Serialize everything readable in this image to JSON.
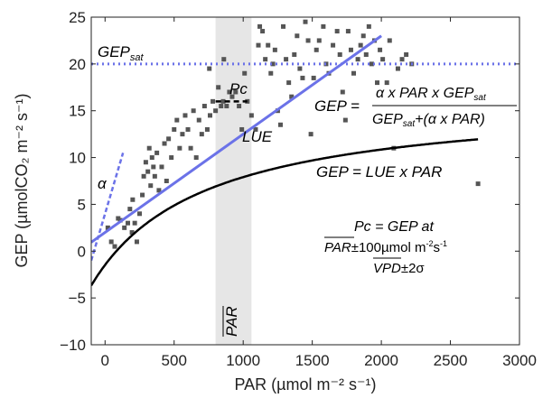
{
  "chart_data": {
    "type": "scatter",
    "xlabel": "PAR (µmol m⁻² s⁻¹)",
    "ylabel": "GEP (µmolCO₂ m⁻² s⁻¹)",
    "xlim": [
      -100,
      3000
    ],
    "ylim": [
      -10,
      25
    ],
    "x_ticks": [
      0,
      500,
      1000,
      1500,
      2000,
      2500,
      3000
    ],
    "y_ticks": [
      -10,
      -5,
      0,
      5,
      10,
      15,
      20,
      25
    ],
    "grid": false,
    "colors": {
      "points": "#555555",
      "fit_curve": "#000000",
      "lue_line": "#6b72e8",
      "band": "#e6e6e6"
    },
    "points": [
      {
        "x": 20,
        "y": 2.5
      },
      {
        "x": 45,
        "y": 1.0
      },
      {
        "x": 70,
        "y": 0.5
      },
      {
        "x": 95,
        "y": 3.5
      },
      {
        "x": 110,
        "y": 3.3
      },
      {
        "x": 140,
        "y": 2.5
      },
      {
        "x": 165,
        "y": 3.0
      },
      {
        "x": 180,
        "y": 4.5
      },
      {
        "x": 195,
        "y": 2.0
      },
      {
        "x": 200,
        "y": 5.5
      },
      {
        "x": 215,
        "y": 3.0
      },
      {
        "x": 230,
        "y": 1.0
      },
      {
        "x": 250,
        "y": 4.0
      },
      {
        "x": 270,
        "y": 6.0
      },
      {
        "x": 280,
        "y": 8.0
      },
      {
        "x": 295,
        "y": 9.5
      },
      {
        "x": 310,
        "y": 8.5
      },
      {
        "x": 320,
        "y": 11.0
      },
      {
        "x": 330,
        "y": 7.0
      },
      {
        "x": 340,
        "y": 10.0
      },
      {
        "x": 350,
        "y": 9.0
      },
      {
        "x": 360,
        "y": 8.0
      },
      {
        "x": 375,
        "y": 10.5
      },
      {
        "x": 390,
        "y": 6.5
      },
      {
        "x": 410,
        "y": 9.0
      },
      {
        "x": 430,
        "y": 11.5
      },
      {
        "x": 445,
        "y": 7.5
      },
      {
        "x": 460,
        "y": 12.0
      },
      {
        "x": 480,
        "y": 10.0
      },
      {
        "x": 500,
        "y": 13.0
      },
      {
        "x": 520,
        "y": 14.0
      },
      {
        "x": 540,
        "y": 11.0
      },
      {
        "x": 560,
        "y": 12.5
      },
      {
        "x": 580,
        "y": 14.5
      },
      {
        "x": 600,
        "y": 13.0
      },
      {
        "x": 620,
        "y": 11.0
      },
      {
        "x": 640,
        "y": 15.0
      },
      {
        "x": 660,
        "y": 10.0
      },
      {
        "x": 680,
        "y": 14.0
      },
      {
        "x": 700,
        "y": 12.5
      },
      {
        "x": 720,
        "y": 15.5
      },
      {
        "x": 740,
        "y": 13.0
      },
      {
        "x": 755,
        "y": 19.5
      },
      {
        "x": 760,
        "y": 14.5
      },
      {
        "x": 780,
        "y": 16.0
      },
      {
        "x": 800,
        "y": 15.0
      },
      {
        "x": 820,
        "y": 17.5
      },
      {
        "x": 840,
        "y": 15.5
      },
      {
        "x": 855,
        "y": 16.0
      },
      {
        "x": 860,
        "y": 20.5
      },
      {
        "x": 880,
        "y": 15.5
      },
      {
        "x": 900,
        "y": 17.0
      },
      {
        "x": 920,
        "y": 16.5
      },
      {
        "x": 945,
        "y": 17.0
      },
      {
        "x": 970,
        "y": 15.5
      },
      {
        "x": 990,
        "y": 13.0
      },
      {
        "x": 1010,
        "y": 19.0
      },
      {
        "x": 1030,
        "y": 16.0
      },
      {
        "x": 1060,
        "y": 14.5
      },
      {
        "x": 1090,
        "y": 13.0
      },
      {
        "x": 1110,
        "y": 22.0
      },
      {
        "x": 1120,
        "y": 24.0
      },
      {
        "x": 1140,
        "y": 23.5
      },
      {
        "x": 1160,
        "y": 20.5
      },
      {
        "x": 1180,
        "y": 22.0
      },
      {
        "x": 1200,
        "y": 19.0
      },
      {
        "x": 1215,
        "y": 20.0
      },
      {
        "x": 1230,
        "y": 21.5
      },
      {
        "x": 1250,
        "y": 15.0
      },
      {
        "x": 1270,
        "y": 13.5
      },
      {
        "x": 1290,
        "y": 24.0
      },
      {
        "x": 1310,
        "y": 20.5
      },
      {
        "x": 1330,
        "y": 18.0
      },
      {
        "x": 1350,
        "y": 16.5
      },
      {
        "x": 1370,
        "y": 21.0
      },
      {
        "x": 1390,
        "y": 23.0
      },
      {
        "x": 1410,
        "y": 19.5
      },
      {
        "x": 1430,
        "y": 18.5
      },
      {
        "x": 1450,
        "y": 24.5
      },
      {
        "x": 1470,
        "y": 22.5
      },
      {
        "x": 1490,
        "y": 12.5
      },
      {
        "x": 1510,
        "y": 18.5
      },
      {
        "x": 1530,
        "y": 21.5
      },
      {
        "x": 1550,
        "y": 22.5
      },
      {
        "x": 1580,
        "y": 24.0
      },
      {
        "x": 1600,
        "y": 20.0
      },
      {
        "x": 1620,
        "y": 19.0
      },
      {
        "x": 1650,
        "y": 22.0
      },
      {
        "x": 1680,
        "y": 23.5
      },
      {
        "x": 1700,
        "y": 21.0
      },
      {
        "x": 1720,
        "y": 17.0
      },
      {
        "x": 1740,
        "y": 14.0
      },
      {
        "x": 1760,
        "y": 23.5
      },
      {
        "x": 1780,
        "y": 21.5
      },
      {
        "x": 1800,
        "y": 19.0
      },
      {
        "x": 1830,
        "y": 20.5
      },
      {
        "x": 1850,
        "y": 22.0
      },
      {
        "x": 1870,
        "y": 23.0
      },
      {
        "x": 1890,
        "y": 21.0
      },
      {
        "x": 1910,
        "y": 24.0
      },
      {
        "x": 1930,
        "y": 20.0
      },
      {
        "x": 1950,
        "y": 22.5
      },
      {
        "x": 1970,
        "y": 18.0
      },
      {
        "x": 1990,
        "y": 21.5
      },
      {
        "x": 2010,
        "y": 20.5
      },
      {
        "x": 2040,
        "y": 18.0
      },
      {
        "x": 2060,
        "y": 22.5
      },
      {
        "x": 2090,
        "y": 11.0
      },
      {
        "x": 2120,
        "y": 19.5
      },
      {
        "x": 2150,
        "y": 20.5
      },
      {
        "x": 2180,
        "y": 21.0
      },
      {
        "x": 2220,
        "y": 20.0
      },
      {
        "x": 2700,
        "y": 7.2
      }
    ],
    "fit_curve": {
      "alpha": 0.035,
      "gep_sat": 24,
      "x_range": [
        -100,
        2700
      ]
    },
    "lue_line": {
      "slope": 0.0105,
      "intercept": 2.0,
      "x_range": [
        -100,
        2000
      ]
    },
    "alpha_line": {
      "slope": 0.05,
      "intercept": 4.0,
      "x_range": [
        -100,
        130
      ]
    },
    "gep_sat_level": 20,
    "pc_segment": {
      "x_range": [
        800,
        1030
      ],
      "y": 16.0
    },
    "par_band": {
      "x_range": [
        800,
        1060
      ]
    }
  },
  "annotations": {
    "gep_sat_label": "GEP",
    "gep_sat_sub": "sat",
    "pc_label": "Pc",
    "lue_label": "LUE",
    "alpha_label": "α",
    "par_label": "PAR",
    "eq1_lhs": "GEP =",
    "eq1_num_a": "α x PAR x GEP",
    "eq1_num_sub": "sat",
    "eq1_den_a": "GEP",
    "eq1_den_sub": "sat",
    "eq1_den_b": "+(α x PAR)",
    "eq2": "GEP = LUE x PAR",
    "pc_def_line1": "Pc = GEP at",
    "pc_def_par": "PAR",
    "pc_def_par_rest": "±100µmol m",
    "pc_def_sup1": "-2",
    "pc_def_s": "s",
    "pc_def_sup2": "-1",
    "pc_def_vpd": "VPD",
    "pc_def_vpd_rest": "±2σ"
  }
}
